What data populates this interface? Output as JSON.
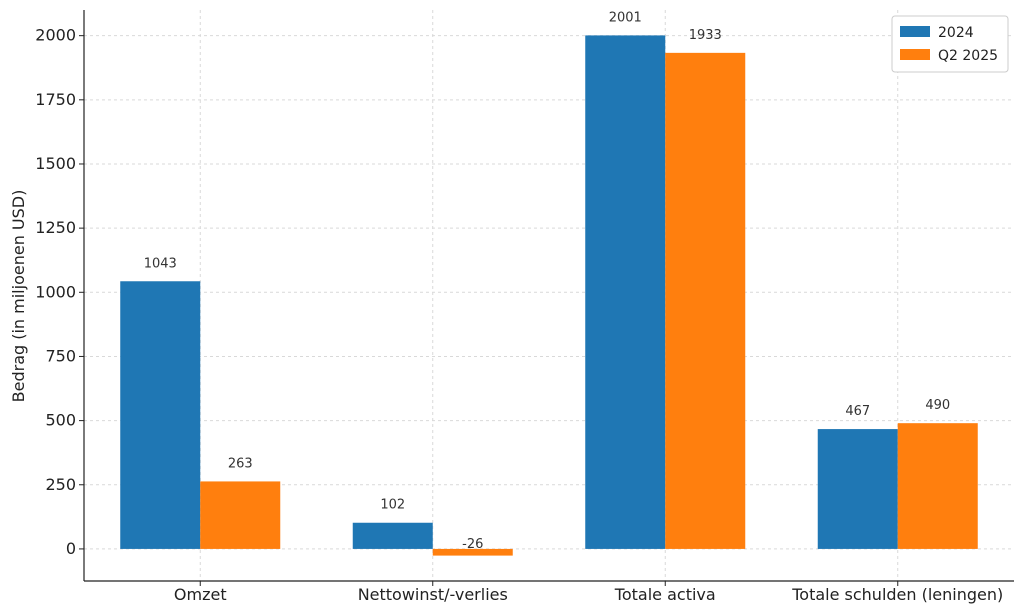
{
  "chart_data": {
    "type": "bar",
    "title": "",
    "xlabel": "",
    "ylabel": "Bedrag (in miljoenen USD)",
    "categories": [
      "Omzet",
      "Nettowinst/-verlies",
      "Totale activa",
      "Totale schulden (leningen)"
    ],
    "series": [
      {
        "name": "2024",
        "color": "#1f77b4",
        "values": [
          1043,
          102,
          2001,
          467
        ]
      },
      {
        "name": "Q2 2025",
        "color": "#ff7f0e",
        "values": [
          263,
          -26,
          1933,
          490
        ]
      }
    ],
    "ylim": [
      -125,
      2100
    ],
    "yticks": [
      0,
      250,
      500,
      750,
      1000,
      1250,
      1500,
      1750,
      2000
    ],
    "grid": true,
    "legend_position": "top-right"
  }
}
